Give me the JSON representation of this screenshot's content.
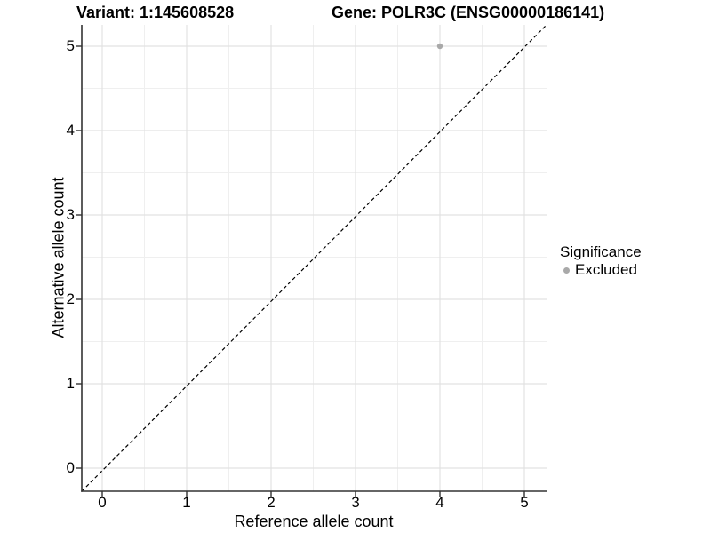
{
  "chart_data": {
    "type": "scatter",
    "titles": {
      "variant": "Variant: 1:145608528",
      "gene": "Gene: POLR3C (ENSG00000186141)"
    },
    "xlabel": "Reference allele count",
    "ylabel": "Alternative allele count",
    "xlim": [
      -0.25,
      5.25
    ],
    "ylim": [
      -0.27,
      5.26
    ],
    "xticks": [
      0,
      1,
      2,
      3,
      4,
      5
    ],
    "yticks": [
      0,
      1,
      2,
      3,
      4,
      5
    ],
    "minor_gridlines_x": [
      0.5,
      1.5,
      2.5,
      3.5,
      4.5
    ],
    "minor_gridlines_y": [
      0.5,
      1.5,
      2.5,
      3.5,
      4.5
    ],
    "grid": true,
    "identity_line": {
      "style": "dashed",
      "color": "#000000",
      "note": "y = x reference line, corner to corner"
    },
    "series": [
      {
        "name": "Excluded",
        "color": "#a9a9a9",
        "marker": "circle",
        "points": [
          {
            "x": 4,
            "y": 5
          }
        ]
      }
    ],
    "legend": {
      "title": "Significance",
      "position": "right",
      "entries": [
        {
          "label": "Excluded",
          "color": "#a9a9a9",
          "marker": "circle"
        }
      ]
    },
    "colors": {
      "background": "#ffffff",
      "major_grid": "#e2e2e2",
      "minor_grid": "#efefef",
      "axis_line": "#333333",
      "tick_mark": "#333333",
      "text": "#000000",
      "point": "#a9a9a9"
    }
  }
}
